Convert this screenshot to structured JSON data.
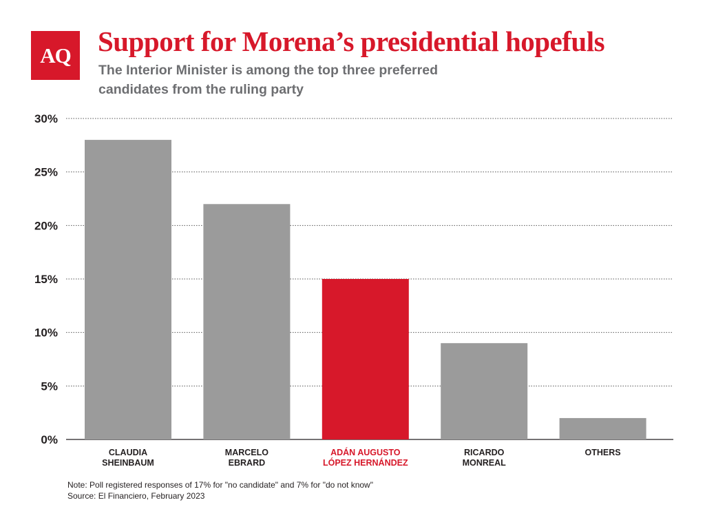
{
  "logo": {
    "text": "AQ"
  },
  "title": "Support for Morena’s presidential hopefuls",
  "subtitle": "The Interior Minister is among the top three preferred candidates from the ruling party",
  "colors": {
    "accent": "#d7182a",
    "bar": "#9b9b9b",
    "highlight": "#d7182a",
    "subtitle": "#6d6e71"
  },
  "chart_data": {
    "type": "bar",
    "categories": [
      [
        "CLAUDIA",
        "SHEINBAUM"
      ],
      [
        "MARCELO",
        "EBRARD"
      ],
      [
        "ADÁN AUGUSTO",
        "LÓPEZ HERNÁNDEZ"
      ],
      [
        "RICARDO",
        "MONREAL"
      ],
      [
        "OTHERS"
      ]
    ],
    "values": [
      28,
      22,
      15,
      9,
      2
    ],
    "highlight_index": 2,
    "ylim": [
      0,
      30
    ],
    "yticks": [
      0,
      5,
      10,
      15,
      20,
      25,
      30
    ],
    "ytick_labels": [
      "0%",
      "5%",
      "10%",
      "15%",
      "20%",
      "25%",
      "30%"
    ],
    "grid": true,
    "grid_style": "dotted"
  },
  "note": {
    "line1": "Note: Poll registered responses of 17% for \"no candidate\" and 7% for \"do not know\"",
    "line2": "Source: El Financiero, February 2023"
  }
}
